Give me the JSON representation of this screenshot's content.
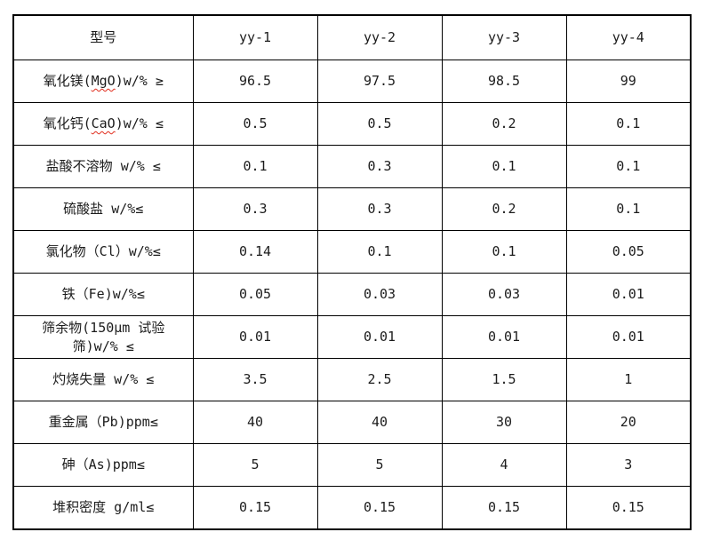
{
  "colors": {
    "background": "#ffffff",
    "border": "#000000",
    "text": "#1c1c1c",
    "spellcheck_underline": "#e02a1a"
  },
  "table": {
    "header": {
      "label": "型号",
      "models": [
        "yy-1",
        "yy-2",
        "yy-3",
        "yy-4"
      ]
    },
    "rows": [
      {
        "label_pre": "氧化镁(",
        "label_mark": "MgO",
        "label_post": ")w/% ≥",
        "values": [
          "96.5",
          "97.5",
          "98.5",
          "99"
        ]
      },
      {
        "label_pre": "氧化钙(",
        "label_mark": "CaO",
        "label_post": ")w/% ≤",
        "values": [
          "0.5",
          "0.5",
          "0.2",
          "0.1"
        ]
      },
      {
        "label_pre": "盐酸不溶物 w/% ≤",
        "label_mark": "",
        "label_post": "",
        "values": [
          "0.1",
          "0.3",
          "0.1",
          "0.1"
        ]
      },
      {
        "label_pre": "硫酸盐 w/%≤",
        "label_mark": "",
        "label_post": "",
        "values": [
          "0.3",
          "0.3",
          "0.2",
          "0.1"
        ]
      },
      {
        "label_pre": "氯化物（Cl）w/%≤",
        "label_mark": "",
        "label_post": "",
        "values": [
          "0.14",
          "0.1",
          "0.1",
          "0.05"
        ]
      },
      {
        "label_pre": "铁（Fe)w/%≤",
        "label_mark": "",
        "label_post": "",
        "values": [
          "0.05",
          "0.03",
          "0.03",
          "0.01"
        ]
      },
      {
        "label_pre": "筛余物(150μm 试验\n筛)w/% ≤",
        "label_mark": "",
        "label_post": "",
        "values": [
          "0.01",
          "0.01",
          "0.01",
          "0.01"
        ]
      },
      {
        "label_pre": "灼烧失量 w/% ≤",
        "label_mark": "",
        "label_post": "",
        "values": [
          "3.5",
          "2.5",
          "1.5",
          "1"
        ]
      },
      {
        "label_pre": "重金属（Pb)ppm≤",
        "label_mark": "",
        "label_post": "",
        "values": [
          "40",
          "40",
          "30",
          "20"
        ]
      },
      {
        "label_pre": "砷（As)ppm≤",
        "label_mark": "",
        "label_post": "",
        "values": [
          "5",
          "5",
          "4",
          "3"
        ]
      },
      {
        "label_pre": "堆积密度 g/ml≤",
        "label_mark": "",
        "label_post": "",
        "values": [
          "0.15",
          "0.15",
          "0.15",
          "0.15"
        ]
      }
    ]
  }
}
